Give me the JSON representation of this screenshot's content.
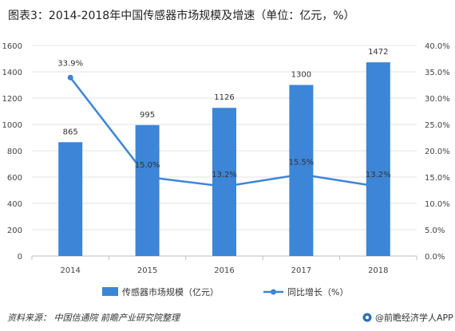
{
  "title": "图表3：2014-2018年中国传感器市场规模及增速（单位：亿元，%）",
  "source": "资料来源：  中国信通院  前瞻产业研究院整理",
  "brand": "@前瞻经济学人APP",
  "chart_data": {
    "type": "bar+line",
    "categories": [
      "2014",
      "2015",
      "2016",
      "2017",
      "2018"
    ],
    "series": [
      {
        "name": "传感器市场规模（亿元）",
        "type": "bar",
        "axis": "left",
        "values": [
          865,
          995,
          1126,
          1300,
          1472
        ],
        "labels": [
          "865",
          "995",
          "1126",
          "1300",
          "1472"
        ]
      },
      {
        "name": "同比增长（%）",
        "type": "line",
        "axis": "right",
        "values": [
          33.9,
          15.0,
          13.2,
          15.5,
          13.2
        ],
        "labels": [
          "33.9%",
          "15.0%",
          "13.2%",
          "15.5%",
          "13.2%"
        ]
      }
    ],
    "y_left": {
      "min": 0,
      "max": 1600,
      "ticks": [
        "0",
        "200",
        "400",
        "600",
        "800",
        "1000",
        "1200",
        "1400",
        "1600"
      ]
    },
    "y_right": {
      "min": 0,
      "max": 40,
      "ticks": [
        "0.0%",
        "5.0%",
        "10.0%",
        "15.0%",
        "20.0%",
        "25.0%",
        "30.0%",
        "35.0%",
        "40.0%"
      ]
    },
    "colors": {
      "bar": "#3d85d6",
      "line": "#3d85d6"
    },
    "legend_position": "bottom"
  }
}
